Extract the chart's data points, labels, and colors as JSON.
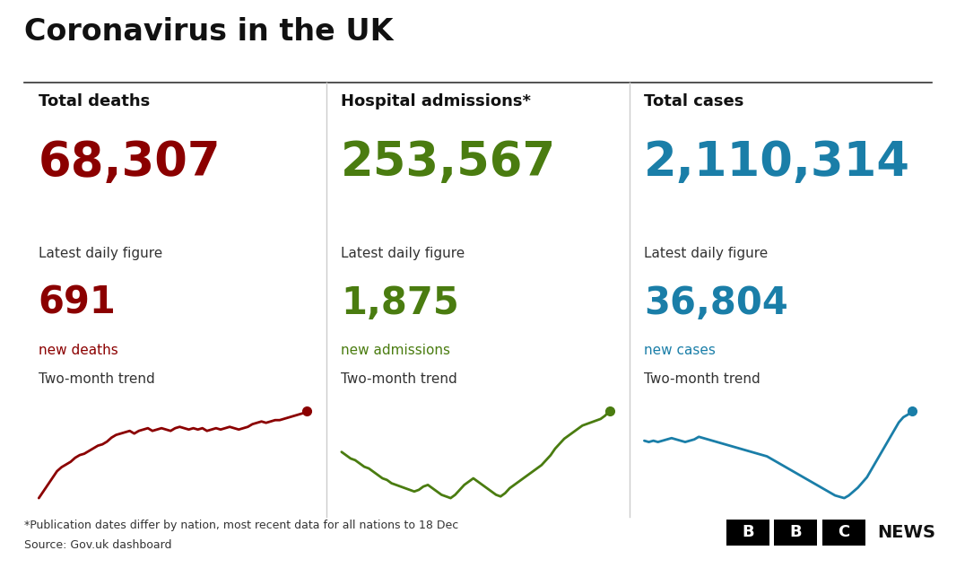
{
  "title": "Coronavirus in the UK",
  "background_color": "#ffffff",
  "title_color": "#111111",
  "columns": [
    {
      "label": "Total deaths",
      "total": "68,307",
      "total_color": "#8b0000",
      "daily_label": "Latest daily figure",
      "daily_value": "691",
      "daily_value_color": "#8b0000",
      "daily_sub_label": "new deaths",
      "daily_sub_color": "#8b0000",
      "trend_label": "Two-month trend",
      "trend_color": "#8b0000",
      "trend_x": [
        0,
        1,
        2,
        3,
        4,
        5,
        6,
        7,
        8,
        9,
        10,
        11,
        12,
        13,
        14,
        15,
        16,
        17,
        18,
        19,
        20,
        21,
        22,
        23,
        24,
        25,
        26,
        27,
        28,
        29,
        30,
        31,
        32,
        33,
        34,
        35,
        36,
        37,
        38,
        39,
        40,
        41,
        42,
        43,
        44,
        45,
        46,
        47,
        48,
        49,
        50,
        51,
        52,
        53,
        54,
        55,
        56,
        57,
        58,
        59
      ],
      "trend_y": [
        0.05,
        0.1,
        0.15,
        0.2,
        0.25,
        0.28,
        0.3,
        0.32,
        0.35,
        0.37,
        0.38,
        0.4,
        0.42,
        0.44,
        0.45,
        0.47,
        0.5,
        0.52,
        0.53,
        0.54,
        0.55,
        0.53,
        0.55,
        0.56,
        0.57,
        0.55,
        0.56,
        0.57,
        0.56,
        0.55,
        0.57,
        0.58,
        0.57,
        0.56,
        0.57,
        0.56,
        0.57,
        0.55,
        0.56,
        0.57,
        0.56,
        0.57,
        0.58,
        0.57,
        0.56,
        0.57,
        0.58,
        0.6,
        0.61,
        0.62,
        0.61,
        0.62,
        0.63,
        0.63,
        0.64,
        0.65,
        0.66,
        0.67,
        0.68,
        0.7
      ]
    },
    {
      "label": "Hospital admissions*",
      "total": "253,567",
      "total_color": "#4a7c10",
      "daily_label": "Latest daily figure",
      "daily_value": "1,875",
      "daily_value_color": "#4a7c10",
      "daily_sub_label": "new admissions",
      "daily_sub_color": "#4a7c10",
      "trend_label": "Two-month trend",
      "trend_color": "#4a7c10",
      "trend_x": [
        0,
        1,
        2,
        3,
        4,
        5,
        6,
        7,
        8,
        9,
        10,
        11,
        12,
        13,
        14,
        15,
        16,
        17,
        18,
        19,
        20,
        21,
        22,
        23,
        24,
        25,
        26,
        27,
        28,
        29,
        30,
        31,
        32,
        33,
        34,
        35,
        36,
        37,
        38,
        39,
        40,
        41,
        42,
        43,
        44,
        45,
        46,
        47,
        48,
        49,
        50,
        51,
        52,
        53,
        54,
        55,
        56,
        57,
        58,
        59
      ],
      "trend_y": [
        0.6,
        0.58,
        0.56,
        0.55,
        0.53,
        0.51,
        0.5,
        0.48,
        0.46,
        0.44,
        0.43,
        0.41,
        0.4,
        0.39,
        0.38,
        0.37,
        0.36,
        0.37,
        0.39,
        0.4,
        0.38,
        0.36,
        0.34,
        0.33,
        0.32,
        0.34,
        0.37,
        0.4,
        0.42,
        0.44,
        0.42,
        0.4,
        0.38,
        0.36,
        0.34,
        0.33,
        0.35,
        0.38,
        0.4,
        0.42,
        0.44,
        0.46,
        0.48,
        0.5,
        0.52,
        0.55,
        0.58,
        0.62,
        0.65,
        0.68,
        0.7,
        0.72,
        0.74,
        0.76,
        0.77,
        0.78,
        0.79,
        0.8,
        0.82,
        0.85
      ]
    },
    {
      "label": "Total cases",
      "total": "2,110,314",
      "total_color": "#1a7ea8",
      "daily_label": "Latest daily figure",
      "daily_value": "36,804",
      "daily_value_color": "#1a7ea8",
      "daily_sub_label": "new cases",
      "daily_sub_color": "#1a7ea8",
      "trend_label": "Two-month trend",
      "trend_color": "#1a7ea8",
      "trend_x": [
        0,
        1,
        2,
        3,
        4,
        5,
        6,
        7,
        8,
        9,
        10,
        11,
        12,
        13,
        14,
        15,
        16,
        17,
        18,
        19,
        20,
        21,
        22,
        23,
        24,
        25,
        26,
        27,
        28,
        29,
        30,
        31,
        32,
        33,
        34,
        35,
        36,
        37,
        38,
        39,
        40,
        41,
        42,
        43,
        44,
        45,
        46,
        47,
        48,
        49,
        50,
        51,
        52,
        53,
        54,
        55,
        56,
        57,
        58,
        59
      ],
      "trend_y": [
        0.72,
        0.71,
        0.72,
        0.71,
        0.72,
        0.73,
        0.74,
        0.73,
        0.72,
        0.71,
        0.72,
        0.73,
        0.75,
        0.74,
        0.73,
        0.72,
        0.71,
        0.7,
        0.69,
        0.68,
        0.67,
        0.66,
        0.65,
        0.64,
        0.63,
        0.62,
        0.61,
        0.6,
        0.58,
        0.56,
        0.54,
        0.52,
        0.5,
        0.48,
        0.46,
        0.44,
        0.42,
        0.4,
        0.38,
        0.36,
        0.34,
        0.32,
        0.3,
        0.29,
        0.28,
        0.3,
        0.33,
        0.36,
        0.4,
        0.44,
        0.5,
        0.56,
        0.62,
        0.68,
        0.74,
        0.8,
        0.86,
        0.9,
        0.92,
        0.95
      ]
    }
  ],
  "footnote1": "*Publication dates differ by nation, most recent data for all nations to 18 Dec",
  "footnote2": "Source: Gov.uk dashboard"
}
